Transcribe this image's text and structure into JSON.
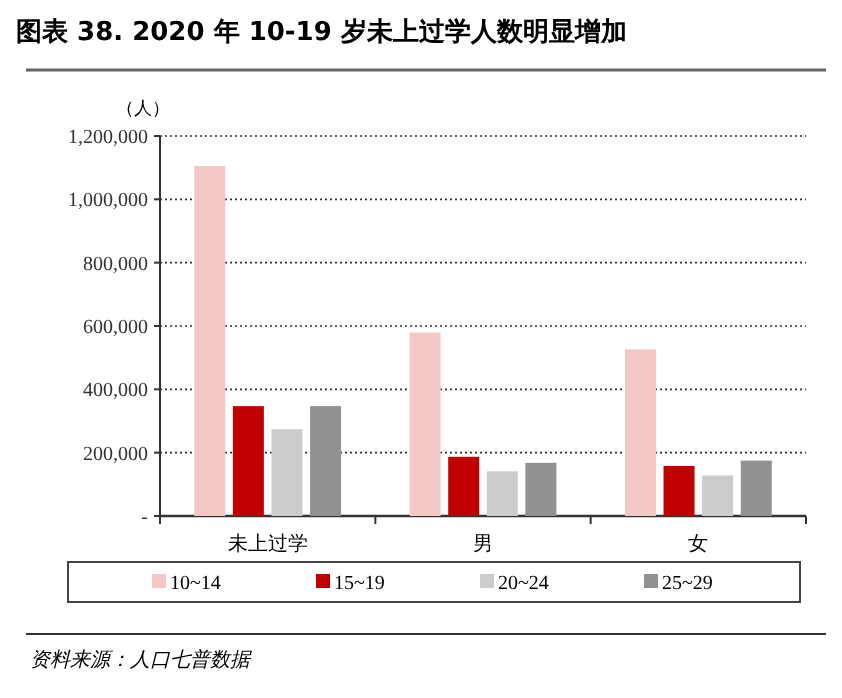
{
  "chart_data": {
    "type": "bar",
    "title": "图表 38. 2020 年 10-19 岁未上过学人数明显增加",
    "ylabel": "（人）",
    "categories": [
      "未上过学",
      "男",
      "女"
    ],
    "series": [
      {
        "name": "10~14",
        "color": "#f4c7c7",
        "values": [
          1105000,
          579000,
          526000
        ]
      },
      {
        "name": "15~19",
        "color": "#c00000",
        "values": [
          347000,
          187000,
          158000
        ]
      },
      {
        "name": "20~24",
        "color": "#cccccc",
        "values": [
          274000,
          141000,
          128000
        ]
      },
      {
        "name": "25~29",
        "color": "#919191",
        "values": [
          347000,
          168000,
          175000
        ]
      }
    ],
    "ylim": [
      0,
      1200000
    ],
    "yticks": [
      {
        "value": 0,
        "label": "-"
      },
      {
        "value": 200000,
        "label": "200,000"
      },
      {
        "value": 400000,
        "label": "400,000"
      },
      {
        "value": 600000,
        "label": "600,000"
      },
      {
        "value": 800000,
        "label": "800,000"
      },
      {
        "value": 1000000,
        "label": "1,000,000"
      },
      {
        "value": 1200000,
        "label": "1,200,000"
      }
    ],
    "grid": "y",
    "legend": "bottom",
    "annotations": [
      "资料来源：人口七普数据"
    ]
  }
}
